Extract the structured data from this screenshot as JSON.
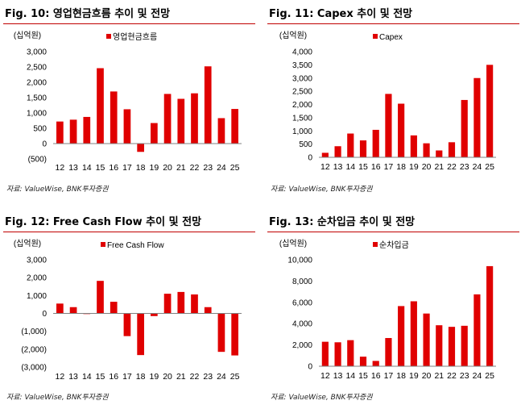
{
  "figures": [
    {
      "title": "Fig. 10: 영업현금흐름 추이 및 전망",
      "source": "자료: ValueWise, BNK투자증권"
    },
    {
      "title": "Fig. 11: Capex 추이 및 전망",
      "source": "자료: ValueWise, BNK투자증권"
    },
    {
      "title": "Fig. 12: Free Cash Flow 추이 및 전망",
      "source": "자료: ValueWise, BNK투자증권"
    },
    {
      "title": "Fig. 13: 순차입금 추이 및 전망",
      "source": "자료: ValueWise, BNK투자증권"
    }
  ],
  "colors": {
    "bar": "#e00000",
    "rule": "#c00000",
    "axis": "#808080"
  },
  "chart_data": [
    {
      "type": "bar",
      "unit": "(십억원)",
      "legend": "영업현금흐름",
      "legend_position": "top",
      "categories": [
        "12",
        "13",
        "14",
        "15",
        "16",
        "17",
        "18",
        "19",
        "20",
        "21",
        "22",
        "23",
        "24",
        "25"
      ],
      "values": [
        720,
        780,
        870,
        2460,
        1700,
        1120,
        -270,
        670,
        1620,
        1460,
        1640,
        2520,
        830,
        1130
      ],
      "ylim": [
        -500,
        3000
      ],
      "ticks": [
        -500,
        0,
        500,
        1000,
        1500,
        2000,
        2500,
        3000
      ],
      "tick_labels": [
        "(500)",
        "0",
        "500",
        "1,000",
        "1,500",
        "2,000",
        "2,500",
        "3,000"
      ]
    },
    {
      "type": "bar",
      "unit": "(십억원)",
      "legend": "Capex",
      "legend_position": "top",
      "categories": [
        "12",
        "13",
        "14",
        "15",
        "16",
        "17",
        "18",
        "19",
        "20",
        "21",
        "22",
        "23",
        "24",
        "25"
      ],
      "values": [
        170,
        420,
        900,
        640,
        1040,
        2400,
        2030,
        830,
        530,
        260,
        570,
        2170,
        3000,
        3500
      ],
      "ylim": [
        0,
        4000
      ],
      "ticks": [
        0,
        500,
        1000,
        1500,
        2000,
        2500,
        3000,
        3500,
        4000
      ],
      "tick_labels": [
        "0",
        "500",
        "1,000",
        "1,500",
        "2,000",
        "2,500",
        "3,000",
        "3,500",
        "4,000"
      ]
    },
    {
      "type": "bar",
      "unit": "(십억원)",
      "legend": "Free Cash Flow",
      "legend_position": "top",
      "categories": [
        "12",
        "13",
        "14",
        "15",
        "16",
        "17",
        "18",
        "19",
        "20",
        "21",
        "22",
        "23",
        "24",
        "25"
      ],
      "values": [
        550,
        350,
        -30,
        1820,
        650,
        -1270,
        -2330,
        -150,
        1100,
        1200,
        1060,
        350,
        -2150,
        -2350
      ],
      "ylim": [
        -3000,
        3000
      ],
      "ticks": [
        -3000,
        -2000,
        -1000,
        0,
        1000,
        2000,
        3000
      ],
      "tick_labels": [
        "(3,000)",
        "(2,000)",
        "(1,000)",
        "0",
        "1,000",
        "2,000",
        "3,000"
      ]
    },
    {
      "type": "bar",
      "unit": "(십억원)",
      "legend": "순차입금",
      "legend_position": "top",
      "categories": [
        "12",
        "13",
        "14",
        "15",
        "16",
        "17",
        "18",
        "19",
        "20",
        "21",
        "22",
        "23",
        "24",
        "25"
      ],
      "values": [
        2300,
        2250,
        2450,
        900,
        500,
        2650,
        5650,
        6100,
        4950,
        3850,
        3700,
        3800,
        6750,
        9400
      ],
      "ylim": [
        0,
        10000
      ],
      "ticks": [
        0,
        2000,
        4000,
        6000,
        8000,
        10000
      ],
      "tick_labels": [
        "0",
        "2,000",
        "4,000",
        "6,000",
        "8,000",
        "10,000"
      ]
    }
  ]
}
